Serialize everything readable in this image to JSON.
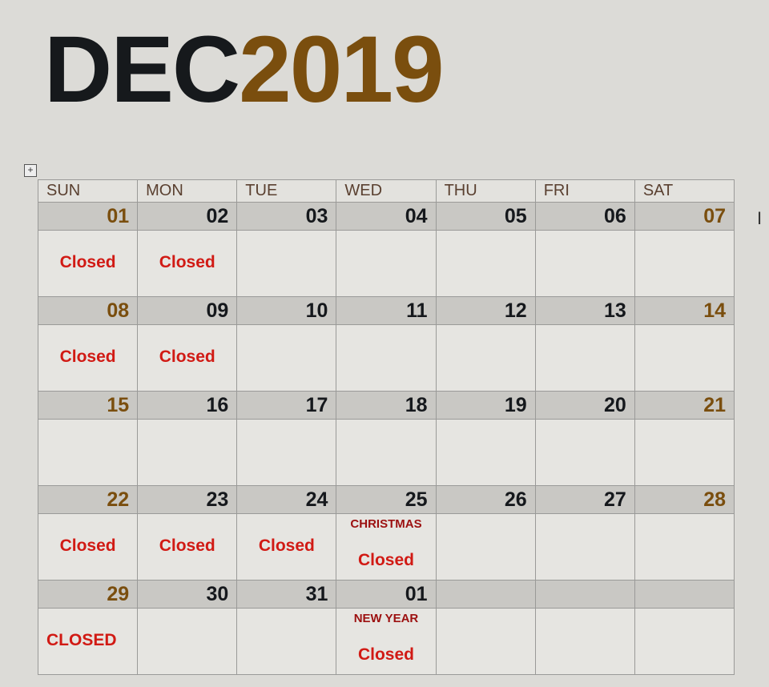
{
  "title": {
    "month": "DEC",
    "year": "2019"
  },
  "colors": {
    "month": "#16191c",
    "year": "#7a4e0e",
    "weekend_date": "#7a4e0e",
    "closed": "#d11a14",
    "holiday": "#9c1010"
  },
  "icons": {
    "table_move": "move-icon",
    "cursor": "text-cursor-icon"
  },
  "days": [
    "SUN",
    "MON",
    "TUE",
    "WED",
    "THU",
    "FRI",
    "SAT"
  ],
  "weeks": [
    {
      "dates": [
        "01",
        "02",
        "03",
        "04",
        "05",
        "06",
        "07"
      ],
      "notes": [
        "Closed",
        "Closed",
        "",
        "",
        "",
        "",
        ""
      ],
      "holidays": [
        "",
        "",
        "",
        "",
        "",
        "",
        ""
      ]
    },
    {
      "dates": [
        "08",
        "09",
        "10",
        "11",
        "12",
        "13",
        "14"
      ],
      "notes": [
        "Closed",
        "Closed",
        "",
        "",
        "",
        "",
        ""
      ],
      "holidays": [
        "",
        "",
        "",
        "",
        "",
        "",
        ""
      ]
    },
    {
      "dates": [
        "15",
        "16",
        "17",
        "18",
        "19",
        "20",
        "21"
      ],
      "notes": [
        "",
        "",
        "",
        "",
        "",
        "",
        ""
      ],
      "holidays": [
        "",
        "",
        "",
        "",
        "",
        "",
        ""
      ]
    },
    {
      "dates": [
        "22",
        "23",
        "24",
        "25",
        "26",
        "27",
        "28"
      ],
      "notes": [
        "Closed",
        "Closed",
        "Closed",
        "Closed",
        "",
        "",
        ""
      ],
      "holidays": [
        "",
        "",
        "",
        "CHRISTMAS",
        "",
        "",
        ""
      ]
    },
    {
      "dates": [
        "29",
        "30",
        "31",
        "01",
        "",
        "",
        ""
      ],
      "notes": [
        "CLOSED",
        "",
        "",
        "Closed",
        "",
        "",
        ""
      ],
      "holidays": [
        "",
        "",
        "",
        "NEW YEAR",
        "",
        "",
        ""
      ]
    }
  ]
}
